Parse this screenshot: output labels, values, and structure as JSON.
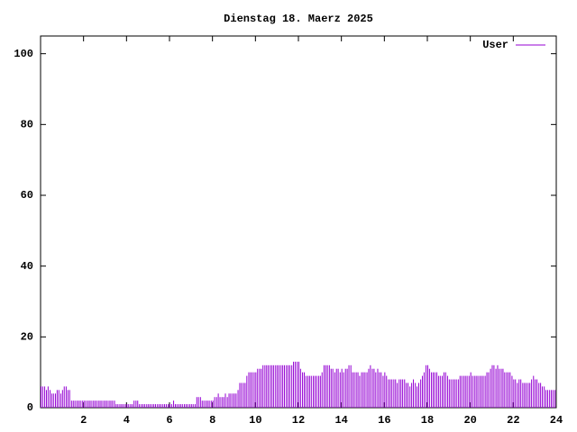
{
  "chart_data": {
    "type": "impulse",
    "title": "Dienstag 18. Maerz 2025",
    "x": [
      0,
      0.08,
      0.17,
      0.25,
      0.33,
      0.42,
      0.5,
      0.58,
      0.67,
      0.75,
      0.83,
      0.92,
      1,
      1.08,
      1.17,
      1.25,
      1.33,
      1.42,
      1.5,
      1.58,
      1.67,
      1.75,
      1.83,
      1.92,
      2,
      2.08,
      2.17,
      2.25,
      2.33,
      2.42,
      2.5,
      2.58,
      2.67,
      2.75,
      2.83,
      2.92,
      3,
      3.08,
      3.17,
      3.25,
      3.33,
      3.42,
      3.5,
      3.58,
      3.67,
      3.75,
      3.83,
      3.92,
      4,
      4.08,
      4.17,
      4.25,
      4.33,
      4.42,
      4.5,
      4.58,
      4.67,
      4.75,
      4.83,
      4.92,
      5,
      5.08,
      5.17,
      5.25,
      5.33,
      5.42,
      5.5,
      5.58,
      5.67,
      5.75,
      5.83,
      5.92,
      6,
      6.08,
      6.17,
      6.25,
      6.33,
      6.42,
      6.5,
      6.58,
      6.67,
      6.75,
      6.83,
      6.92,
      7,
      7.08,
      7.17,
      7.25,
      7.33,
      7.42,
      7.5,
      7.58,
      7.67,
      7.75,
      7.83,
      7.92,
      8,
      8.08,
      8.17,
      8.25,
      8.33,
      8.42,
      8.5,
      8.58,
      8.67,
      8.75,
      8.83,
      8.92,
      9,
      9.08,
      9.17,
      9.25,
      9.33,
      9.42,
      9.5,
      9.58,
      9.67,
      9.75,
      9.83,
      9.92,
      10,
      10.08,
      10.17,
      10.25,
      10.33,
      10.42,
      10.5,
      10.58,
      10.67,
      10.75,
      10.83,
      10.92,
      11,
      11.08,
      11.17,
      11.25,
      11.33,
      11.42,
      11.5,
      11.58,
      11.67,
      11.75,
      11.83,
      11.92,
      12,
      12.08,
      12.17,
      12.25,
      12.33,
      12.42,
      12.5,
      12.58,
      12.67,
      12.75,
      12.83,
      12.92,
      13,
      13.08,
      13.17,
      13.25,
      13.33,
      13.42,
      13.5,
      13.58,
      13.67,
      13.75,
      13.83,
      13.92,
      14,
      14.08,
      14.17,
      14.25,
      14.33,
      14.42,
      14.5,
      14.58,
      14.67,
      14.75,
      14.83,
      14.92,
      15,
      15.08,
      15.17,
      15.25,
      15.33,
      15.42,
      15.5,
      15.58,
      15.67,
      15.75,
      15.83,
      15.92,
      16,
      16.08,
      16.17,
      16.25,
      16.33,
      16.42,
      16.5,
      16.58,
      16.67,
      16.75,
      16.83,
      16.92,
      17,
      17.08,
      17.17,
      17.25,
      17.33,
      17.42,
      17.5,
      17.58,
      17.67,
      17.75,
      17.83,
      17.92,
      18,
      18.08,
      18.17,
      18.25,
      18.33,
      18.42,
      18.5,
      18.58,
      18.67,
      18.75,
      18.83,
      18.92,
      19,
      19.08,
      19.17,
      19.25,
      19.33,
      19.42,
      19.5,
      19.58,
      19.67,
      19.75,
      19.83,
      19.92,
      20,
      20.08,
      20.17,
      20.25,
      20.33,
      20.42,
      20.5,
      20.58,
      20.67,
      20.75,
      20.83,
      20.92,
      21,
      21.08,
      21.17,
      21.25,
      21.33,
      21.42,
      21.5,
      21.58,
      21.67,
      21.75,
      21.83,
      21.92,
      22,
      22.08,
      22.17,
      22.25,
      22.33,
      22.42,
      22.5,
      22.58,
      22.67,
      22.75,
      22.83,
      22.92,
      23,
      23.08,
      23.17,
      23.25,
      23.33,
      23.42,
      23.5,
      23.58,
      23.67,
      23.75,
      23.83,
      23.92
    ],
    "series": [
      {
        "name": "User",
        "color": "#9400d3",
        "values": [
          6,
          6,
          6,
          5,
          6,
          5,
          4,
          4,
          4,
          5,
          5,
          4,
          5,
          6,
          6,
          5,
          5,
          2,
          2,
          2,
          2,
          2,
          2,
          2,
          2,
          2,
          2,
          2,
          2,
          2,
          2,
          2,
          2,
          2,
          2,
          2,
          2,
          2,
          2,
          2,
          2,
          2,
          1,
          1,
          1,
          1,
          1,
          1,
          1,
          1,
          1,
          1,
          2,
          2,
          2,
          1,
          1,
          1,
          1,
          1,
          1,
          1,
          1,
          1,
          1,
          1,
          1,
          1,
          1,
          1,
          1,
          1,
          1,
          1,
          2,
          1,
          1,
          1,
          1,
          1,
          1,
          1,
          1,
          1,
          1,
          1,
          1,
          3,
          3,
          3,
          2,
          2,
          2,
          2,
          2,
          2,
          2,
          3,
          3,
          4,
          3,
          3,
          3,
          4,
          3,
          4,
          4,
          4,
          4,
          4,
          5,
          7,
          7,
          7,
          7,
          9,
          10,
          10,
          10,
          10,
          10,
          11,
          11,
          11,
          12,
          12,
          12,
          12,
          12,
          12,
          12,
          12,
          12,
          12,
          12,
          12,
          12,
          12,
          12,
          12,
          12,
          13,
          13,
          13,
          13,
          11,
          10,
          10,
          9,
          9,
          9,
          9,
          9,
          9,
          9,
          9,
          9,
          10,
          12,
          12,
          12,
          12,
          11,
          11,
          10,
          11,
          11,
          10,
          11,
          10,
          11,
          11,
          12,
          12,
          10,
          10,
          10,
          10,
          9,
          10,
          10,
          10,
          10,
          11,
          12,
          11,
          11,
          10,
          11,
          10,
          10,
          9,
          10,
          9,
          8,
          8,
          8,
          8,
          8,
          7,
          8,
          8,
          8,
          8,
          7,
          7,
          6,
          7,
          8,
          7,
          6,
          7,
          8,
          9,
          10,
          12,
          12,
          11,
          10,
          10,
          10,
          10,
          9,
          9,
          9,
          10,
          10,
          9,
          8,
          8,
          8,
          8,
          8,
          8,
          9,
          9,
          9,
          9,
          9,
          9,
          10,
          9,
          9,
          9,
          9,
          9,
          9,
          9,
          9,
          10,
          10,
          11,
          12,
          12,
          11,
          12,
          11,
          11,
          11,
          10,
          10,
          10,
          10,
          9,
          8,
          8,
          7,
          8,
          8,
          7,
          7,
          7,
          7,
          7,
          8,
          9,
          8,
          8,
          7,
          7,
          6,
          6,
          5,
          5,
          5,
          5,
          5,
          5
        ]
      }
    ],
    "xlim": [
      0,
      24
    ],
    "xticks": [
      2,
      4,
      6,
      8,
      10,
      12,
      14,
      16,
      18,
      20,
      22,
      24
    ],
    "ylim": [
      0,
      105
    ],
    "yticks": [
      0,
      20,
      40,
      60,
      80,
      100
    ],
    "legend": "top-right"
  }
}
